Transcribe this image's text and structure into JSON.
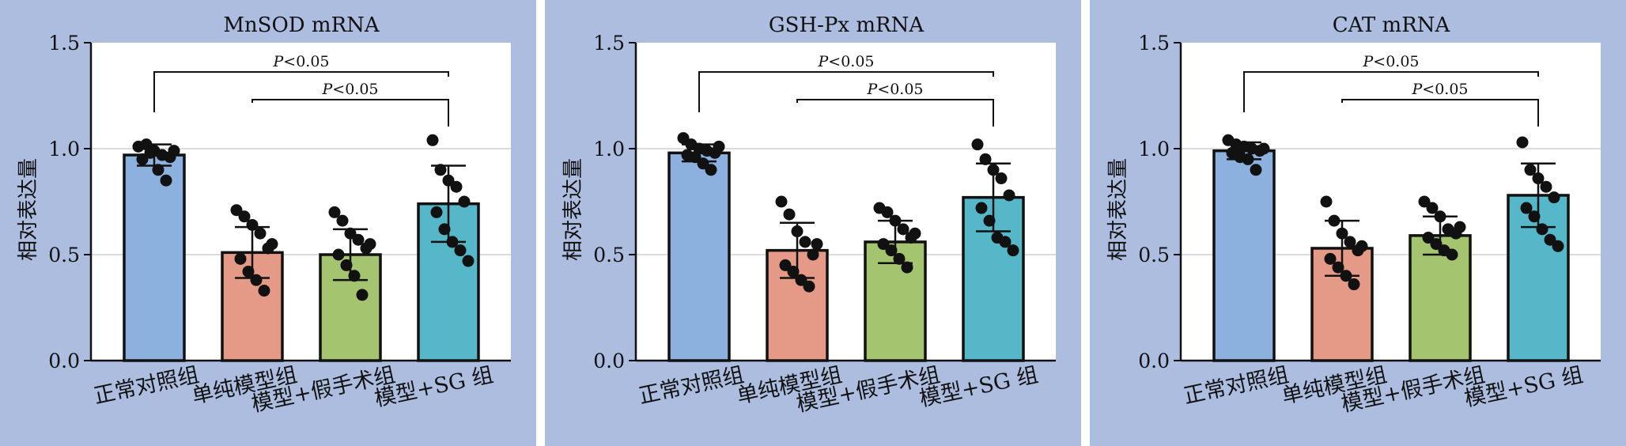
{
  "chart_data": [
    {
      "type": "bar",
      "title": "MnSOD mRNA",
      "ylabel": "相对表达量",
      "categories": [
        "正常对照组",
        "单纯模型组",
        "模型+假手术组",
        "模型+SG 组"
      ],
      "values": [
        0.97,
        0.51,
        0.5,
        0.74
      ],
      "errors": [
        0.05,
        0.12,
        0.12,
        0.18
      ],
      "points": [
        [
          1.01,
          1.02,
          0.99,
          0.97,
          0.96,
          0.95,
          0.98,
          0.9,
          0.85,
          0.99
        ],
        [
          0.71,
          0.68,
          0.64,
          0.6,
          0.53,
          0.48,
          0.42,
          0.38,
          0.33,
          0.55
        ],
        [
          0.7,
          0.66,
          0.6,
          0.57,
          0.53,
          0.5,
          0.45,
          0.4,
          0.31,
          0.55
        ],
        [
          1.04,
          0.9,
          0.85,
          0.82,
          0.75,
          0.7,
          0.62,
          0.56,
          0.52,
          0.47
        ]
      ],
      "ylim": [
        0,
        1.5
      ],
      "yticks": [
        "0.0",
        "0.5",
        "1.0",
        "1.5"
      ],
      "grid": true,
      "comparisons": [
        {
          "from": 0,
          "to": 3,
          "label": "<0.05",
          "level": 2
        },
        {
          "from": 1,
          "to": 3,
          "label": "<0.05",
          "level": 1
        }
      ]
    },
    {
      "type": "bar",
      "title": "GSH-Px mRNA",
      "ylabel": "相对表达量",
      "categories": [
        "正常对照组",
        "单纯模型组",
        "模型+假手术组",
        "模型+SG 组"
      ],
      "values": [
        0.98,
        0.52,
        0.56,
        0.77
      ],
      "errors": [
        0.04,
        0.13,
        0.1,
        0.16
      ],
      "points": [
        [
          1.05,
          1.02,
          1.0,
          0.99,
          0.98,
          0.97,
          0.96,
          0.93,
          0.9,
          1.01
        ],
        [
          0.75,
          0.69,
          0.61,
          0.56,
          0.5,
          0.45,
          0.42,
          0.38,
          0.35,
          0.55
        ],
        [
          0.72,
          0.7,
          0.66,
          0.62,
          0.58,
          0.55,
          0.52,
          0.48,
          0.44,
          0.6
        ],
        [
          1.02,
          0.95,
          0.9,
          0.86,
          0.78,
          0.72,
          0.66,
          0.58,
          0.56,
          0.52
        ]
      ],
      "ylim": [
        0,
        1.5
      ],
      "yticks": [
        "0.0",
        "0.5",
        "1.0",
        "1.5"
      ],
      "grid": true,
      "comparisons": [
        {
          "from": 0,
          "to": 3,
          "label": "<0.05",
          "level": 2
        },
        {
          "from": 1,
          "to": 3,
          "label": "<0.05",
          "level": 1
        }
      ]
    },
    {
      "type": "bar",
      "title": "CAT mRNA",
      "ylabel": "相对表达量",
      "categories": [
        "正常对照组",
        "单纯模型组",
        "模型+假手术组",
        "模型+SG 组"
      ],
      "values": [
        0.99,
        0.53,
        0.59,
        0.78
      ],
      "errors": [
        0.04,
        0.13,
        0.09,
        0.15
      ],
      "points": [
        [
          1.04,
          1.02,
          1.01,
          1.0,
          0.99,
          0.98,
          0.96,
          0.95,
          0.9,
          1.0
        ],
        [
          0.75,
          0.66,
          0.6,
          0.56,
          0.52,
          0.48,
          0.44,
          0.4,
          0.36,
          0.54
        ],
        [
          0.75,
          0.72,
          0.68,
          0.62,
          0.6,
          0.58,
          0.55,
          0.52,
          0.5,
          0.63
        ],
        [
          1.03,
          0.9,
          0.86,
          0.82,
          0.77,
          0.72,
          0.68,
          0.62,
          0.57,
          0.54
        ]
      ],
      "ylim": [
        0,
        1.5
      ],
      "yticks": [
        "0.0",
        "0.5",
        "1.0",
        "1.5"
      ],
      "grid": true,
      "comparisons": [
        {
          "from": 0,
          "to": 3,
          "label": "<0.05",
          "level": 2
        },
        {
          "from": 1,
          "to": 3,
          "label": "<0.05",
          "level": 1
        }
      ]
    }
  ],
  "colors": {
    "panel_bg": "#adbde0",
    "plot_bg": "#ffffff",
    "bars": [
      "#8db1df",
      "#e59a88",
      "#a5c46f",
      "#55b7c8"
    ],
    "axis": "#111111",
    "grid": "#d0d0d0"
  },
  "p_symbol": "P"
}
